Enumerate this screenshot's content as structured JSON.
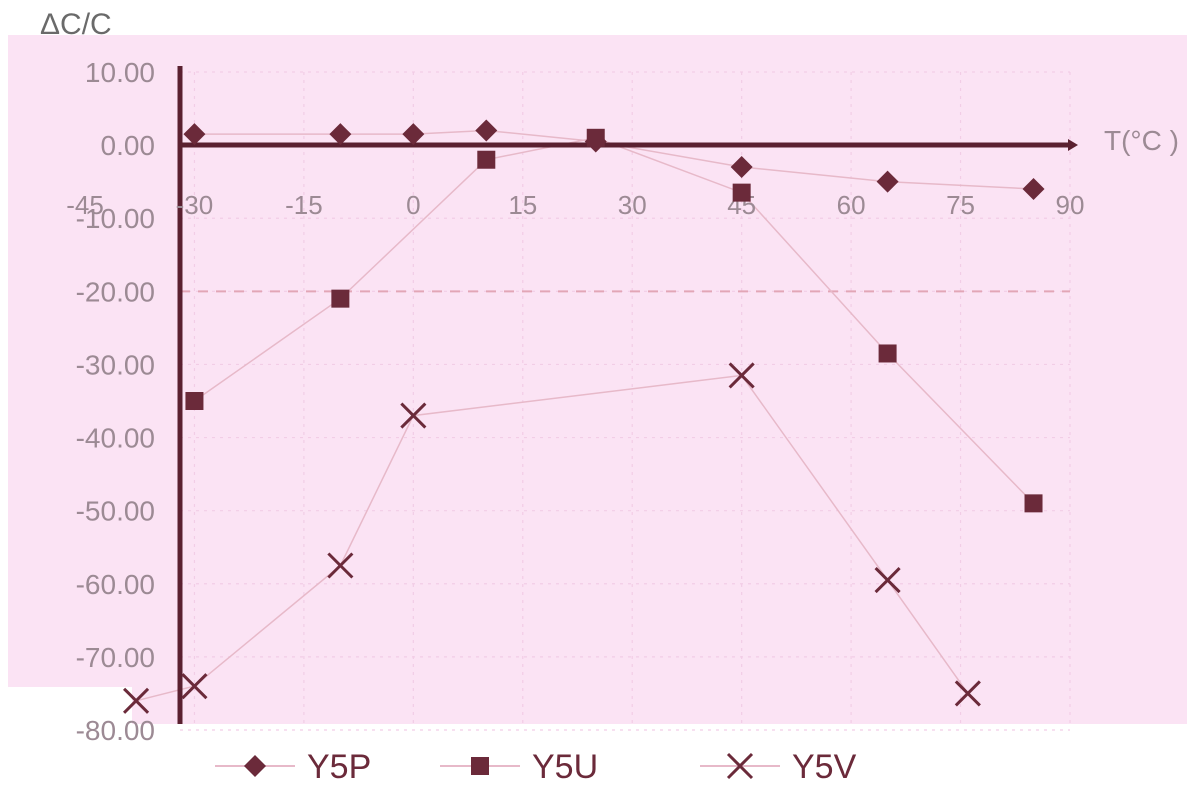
{
  "chart_data": {
    "type": "scatter",
    "title": "",
    "ylabel": "ΔC/C",
    "xlabel": "T(°C )",
    "xlim": [
      -45,
      90
    ],
    "ylim": [
      -80,
      10
    ],
    "x_ticks": [
      {
        "value": -45,
        "label": "-45"
      },
      {
        "value": -30,
        "label": "-30"
      },
      {
        "value": -15,
        "label": "-15"
      },
      {
        "value": 0,
        "label": "0"
      },
      {
        "value": 15,
        "label": "15"
      },
      {
        "value": 30,
        "label": "30"
      },
      {
        "value": 45,
        "label": "45"
      },
      {
        "value": 60,
        "label": "60"
      },
      {
        "value": 75,
        "label": "75"
      },
      {
        "value": 90,
        "label": "90"
      }
    ],
    "y_ticks": [
      {
        "value": 10,
        "label": "10.00"
      },
      {
        "value": 0,
        "label": "0.00"
      },
      {
        "value": -10,
        "label": "-10.00"
      },
      {
        "value": -20,
        "label": "-20.00"
      },
      {
        "value": -30,
        "label": "-30.00"
      },
      {
        "value": -40,
        "label": "-40.00"
      },
      {
        "value": -50,
        "label": "-50.00"
      },
      {
        "value": -60,
        "label": "-60.00"
      },
      {
        "value": -70,
        "label": "-70.00"
      },
      {
        "value": -80,
        "label": "-80.00"
      }
    ],
    "reference_line": {
      "y": -20,
      "style": "dashed"
    },
    "grid": true,
    "legend_position": "bottom",
    "series": [
      {
        "name": "Y5P",
        "marker": "diamond",
        "color": "#6b2a3a",
        "points": [
          {
            "x": -30,
            "y": 1.5
          },
          {
            "x": -10,
            "y": 1.5
          },
          {
            "x": 0,
            "y": 1.5
          },
          {
            "x": 10,
            "y": 2
          },
          {
            "x": 25,
            "y": 0.5
          },
          {
            "x": 45,
            "y": -3
          },
          {
            "x": 65,
            "y": -5
          },
          {
            "x": 85,
            "y": -6
          }
        ]
      },
      {
        "name": "Y5U",
        "marker": "square",
        "color": "#6b2a3a",
        "points": [
          {
            "x": -30,
            "y": -35
          },
          {
            "x": -10,
            "y": -21
          },
          {
            "x": 10,
            "y": -2
          },
          {
            "x": 25,
            "y": 1
          },
          {
            "x": 45,
            "y": -6.5
          },
          {
            "x": 65,
            "y": -28.5
          },
          {
            "x": 85,
            "y": -49
          }
        ]
      },
      {
        "name": "Y5V",
        "marker": "x",
        "color": "#6b2a3a",
        "points": [
          {
            "x": -38,
            "y": -76
          },
          {
            "x": -30,
            "y": -74
          },
          {
            "x": -10,
            "y": -57.5
          },
          {
            "x": 0,
            "y": -37
          },
          {
            "x": 45,
            "y": -31.5
          },
          {
            "x": 65,
            "y": -59.5
          },
          {
            "x": 76,
            "y": -75
          }
        ]
      }
    ]
  },
  "colors": {
    "plot_background": "#fbe3f4",
    "axis": "#5a2030",
    "grid": "#f2cde6",
    "tick_label": "#9c8a94",
    "reference_line": "#e2a6b6",
    "connector": "#e7b9c9"
  }
}
